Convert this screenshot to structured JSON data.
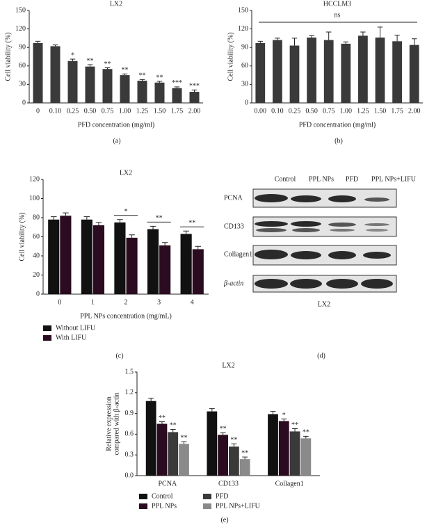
{
  "chart_data": [
    {
      "type": "bar",
      "panel_label": "(a)",
      "title": "LX2",
      "x_label": "PFD concentration (mg/ml)",
      "y_label": "Cell viability (%)",
      "categories": [
        "0",
        "0.10",
        "0.25",
        "0.50",
        "0.75",
        "1.00",
        "1.25",
        "1.50",
        "1.75",
        "2.00"
      ],
      "values": [
        97,
        92,
        68,
        59,
        55,
        45,
        36,
        33,
        24,
        18
      ],
      "errors": [
        3,
        2,
        3,
        3,
        2,
        2,
        2,
        2,
        2,
        3
      ],
      "significance": [
        null,
        null,
        "*",
        "**",
        "**",
        "**",
        "**",
        "**",
        "***",
        "***"
      ],
      "color": "#3a3a3a",
      "ylim": [
        0,
        150
      ],
      "yticks": [
        0,
        30,
        60,
        90,
        120,
        150
      ]
    },
    {
      "type": "bar",
      "panel_label": "(b)",
      "title": "HCCLM3",
      "x_label": "PFD concentration (mg/ml)",
      "y_label": "Cell viability (%)",
      "categories": [
        "0.00",
        "0.10",
        "0.25",
        "0.50",
        "0.75",
        "1.00",
        "1.25",
        "1.50",
        "1.75",
        "2.00"
      ],
      "values": [
        97,
        102,
        93,
        106,
        102,
        96,
        109,
        106,
        100,
        94
      ],
      "errors": [
        3,
        3,
        12,
        3,
        13,
        3,
        6,
        17,
        10,
        10
      ],
      "annotation": "ns",
      "color": "#3a3a3a",
      "ylim": [
        0,
        150
      ],
      "yticks": [
        0,
        30,
        60,
        90,
        120,
        150
      ]
    },
    {
      "type": "bar",
      "panel_label": "(c)",
      "title": "LX2",
      "x_label": "PPL NPs concentration (mg/mL)",
      "y_label": "Cell viability (%)",
      "categories": [
        "0",
        "1",
        "2",
        "3",
        "4"
      ],
      "series": [
        {
          "name": "Without LIFU",
          "color": "#111111",
          "values": [
            78,
            78,
            75,
            68,
            63
          ],
          "errors": [
            3,
            3,
            3,
            3,
            3
          ]
        },
        {
          "name": "With LIFU",
          "color": "#2b0b1f",
          "values": [
            82,
            72,
            59,
            51,
            47
          ],
          "errors": [
            3,
            3,
            3,
            3,
            3
          ]
        }
      ],
      "group_significance": [
        null,
        null,
        "*",
        "**",
        "**"
      ],
      "ylim": [
        0,
        120
      ],
      "yticks": [
        0,
        20,
        40,
        60,
        80,
        100,
        120
      ]
    },
    {
      "type": "bar",
      "panel_label": "(e)",
      "title": "LX2",
      "y_label": [
        "Relative expression",
        "compared with β-actin"
      ],
      "categories": [
        "PCNA",
        "CD133",
        "Collagen1"
      ],
      "series": [
        {
          "name": "Control",
          "color": "#111111",
          "values": [
            1.08,
            0.93,
            0.89
          ],
          "errors": [
            0.04,
            0.04,
            0.04
          ]
        },
        {
          "name": "PPL NPs",
          "color": "#2b0b1f",
          "values": [
            0.75,
            0.59,
            0.79
          ],
          "errors": [
            0.03,
            0.03,
            0.03
          ],
          "significance": [
            "**",
            "**",
            "*"
          ]
        },
        {
          "name": "PFD",
          "color": "#3a3a3a",
          "values": [
            0.63,
            0.42,
            0.64
          ],
          "errors": [
            0.04,
            0.04,
            0.04
          ],
          "significance": [
            "**",
            "**",
            "**"
          ]
        },
        {
          "name": "PPL NPs+LIFU",
          "color": "#8a8a8a",
          "values": [
            0.46,
            0.24,
            0.54
          ],
          "errors": [
            0.03,
            0.03,
            0.03
          ],
          "significance": [
            "**",
            "**",
            "**"
          ]
        }
      ],
      "ylim": [
        0,
        1.5
      ],
      "yticks": [
        {
          "value": 0,
          "label": "0.0"
        },
        {
          "value": 0.3,
          "label": "0.3"
        },
        {
          "value": 0.6,
          "label": "0.6"
        },
        {
          "value": 0.9,
          "label": "0.9"
        },
        {
          "value": 1.2,
          "label": "1.2"
        },
        {
          "value": 1.5,
          "label": "1.5"
        }
      ]
    }
  ],
  "blot": {
    "panel_label": "(d)",
    "caption": "LX2",
    "columns": [
      "Control",
      "PPL NPs",
      "PFD",
      "PPL NPs+LIFU"
    ],
    "rows": [
      "PCNA",
      "CD133",
      "Collagen1",
      "β-actin"
    ]
  }
}
